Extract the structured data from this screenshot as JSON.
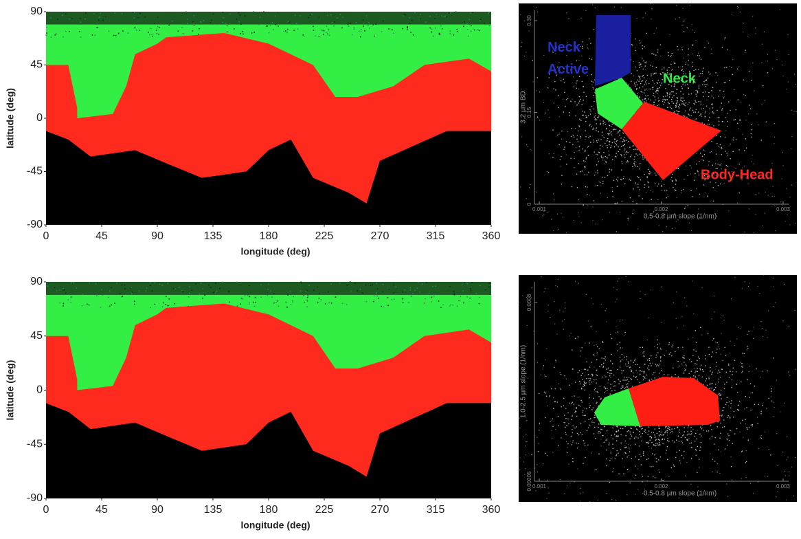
{
  "chart_data": [
    {
      "type": "map",
      "xlabel": "longitude (deg)",
      "ylabel": "latitude (deg)",
      "xlim": [
        0,
        360
      ],
      "ylim": [
        -90,
        90
      ],
      "xticks": [
        0,
        45,
        90,
        135,
        180,
        225,
        270,
        315,
        360
      ],
      "yticks": [
        -90,
        -45,
        0,
        45,
        90
      ],
      "colors": {
        "background": "#000000",
        "neck": "#33ee44",
        "body": "#ff2a1e"
      }
    },
    {
      "type": "scatter",
      "xlabel": "0.5-0.8 µm slope (1/nm)",
      "ylabel": "3.2 µm BD",
      "xlim": [
        0.001,
        0.003
      ],
      "ylim": [
        0,
        0.3
      ],
      "xticks": [
        0.001,
        0.002,
        0.003
      ],
      "yticks": [
        0,
        0.15,
        {
          "value": 0.3,
          "label": "0.30"
        }
      ],
      "annotations": [
        {
          "text": "Neck Active",
          "color": "#2233cc"
        },
        {
          "text": "Neck",
          "color": "#33ee44"
        },
        {
          "text": "Body-Head",
          "color": "#ff2a1e"
        }
      ],
      "colors": {
        "neck_active": "#1a1fa0",
        "neck": "#33ee44",
        "body": "#ff1e14"
      }
    },
    {
      "type": "map",
      "xlabel": "longitude (deg)",
      "ylabel": "latitude (deg)",
      "xlim": [
        0,
        360
      ],
      "ylim": [
        -90,
        90
      ],
      "xticks": [
        0,
        45,
        90,
        135,
        180,
        225,
        270,
        315,
        360
      ],
      "yticks": [
        -90,
        -45,
        0,
        45,
        90
      ],
      "colors": {
        "background": "#000000",
        "neck": "#33ee44",
        "body": "#ff2a1e"
      }
    },
    {
      "type": "scatter",
      "xlabel": "0.5-0.8 µm slope (1/nm)",
      "ylabel": "1.0-2.5 µm slope (1/nm)",
      "xlim": [
        0.001,
        0.003
      ],
      "ylim": [
        5e-05,
        0.0008
      ],
      "xticks": [
        0.001,
        0.002,
        0.003
      ],
      "yticks": [
        5e-05,
        0.0008
      ],
      "annotations": [],
      "colors": {
        "neck": "#33ee44",
        "body": "#ff1e14"
      }
    }
  ]
}
